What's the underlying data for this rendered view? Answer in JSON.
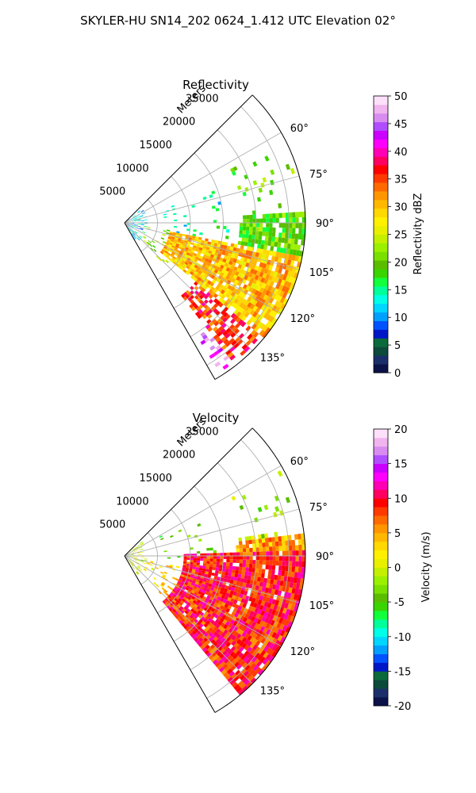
{
  "figure": {
    "title": "SKYLER-HU  SN14_202  0624_1.412 UTC Elevation 02°"
  },
  "chart_data": [
    {
      "type": "heatmap",
      "projection": "polar-sector",
      "title": "Reflectivity",
      "range_axis_label": "Meters",
      "range_ticks": [
        5000,
        10000,
        15000,
        20000,
        25000
      ],
      "range_tick_labels": [
        "5000",
        "10000",
        "15000",
        "20000",
        "25000"
      ],
      "rlim": [
        0,
        27500
      ],
      "azimuth_range_deg": [
        45,
        150
      ],
      "azimuth_ticks_deg": [
        60,
        75,
        90,
        105,
        120,
        135
      ],
      "azimuth_tick_labels": [
        "60°",
        "75°",
        "90°",
        "105°",
        "120°",
        "135°"
      ],
      "grid": true,
      "colorbar": {
        "label": "Reflectivity dBZ",
        "range": [
          0,
          50
        ],
        "ticks": [
          0,
          5,
          10,
          15,
          20,
          25,
          30,
          35,
          40,
          45,
          50
        ],
        "tick_labels": [
          "0",
          "5",
          "10",
          "15",
          "20",
          "25",
          "30",
          "35",
          "40",
          "45",
          "50"
        ],
        "colors": [
          "#0a1248",
          "#1a2f6a",
          "#0c4a3a",
          "#0b6a3c",
          "#0017c7",
          "#0053ff",
          "#00a0ff",
          "#00d6ff",
          "#00ffe6",
          "#00ff9a",
          "#12ff3c",
          "#3ad400",
          "#5bbd00",
          "#7ae000",
          "#9bf000",
          "#c4f000",
          "#e8f000",
          "#fff000",
          "#ffd800",
          "#ffb800",
          "#ff9600",
          "#ff6a00",
          "#ff3a00",
          "#ff0000",
          "#ff0060",
          "#ff00b4",
          "#ff00ff",
          "#cc00ff",
          "#b04dff",
          "#d88cf0",
          "#f0b4ee",
          "#fde0fa"
        ]
      },
      "regions": [
        {
          "az": [
            99,
            128
          ],
          "r": [
            7000,
            27500
          ],
          "value": 30,
          "density": 0.9
        },
        {
          "az": [
            103,
            120
          ],
          "r": [
            11000,
            22000
          ],
          "value": 38,
          "density": 0.8
        },
        {
          "az": [
            110,
            130
          ],
          "r": [
            13000,
            21000
          ],
          "value": 44,
          "density": 0.55
        },
        {
          "az": [
            104,
            116
          ],
          "r": [
            12000,
            15500
          ],
          "value": 48,
          "density": 0.3
        },
        {
          "az": [
            85,
            100
          ],
          "r": [
            17500,
            27500
          ],
          "value": 20,
          "density": 0.85
        },
        {
          "az": [
            95,
            104
          ],
          "r": [
            18000,
            27000
          ],
          "value": 27,
          "density": 0.7
        },
        {
          "az": [
            125,
            142
          ],
          "r": [
            14000,
            27000
          ],
          "value": 36,
          "density": 0.6
        },
        {
          "az": [
            132,
            146
          ],
          "r": [
            20000,
            27000
          ],
          "value": 45,
          "density": 0.35
        },
        {
          "az": [
            50,
            150
          ],
          "r": [
            0,
            3500
          ],
          "value": 12,
          "density": 0.28
        },
        {
          "az": [
            60,
            100
          ],
          "r": [
            6000,
            16000
          ],
          "value": 14,
          "density": 0.07
        },
        {
          "az": [
            100,
            135
          ],
          "r": [
            3000,
            9000
          ],
          "value": 22,
          "density": 0.15
        },
        {
          "az": [
            60,
            85
          ],
          "r": [
            18000,
            27000
          ],
          "value": 20,
          "density": 0.08
        }
      ]
    },
    {
      "type": "heatmap",
      "projection": "polar-sector",
      "title": "Velocity",
      "range_axis_label": "Meters",
      "range_ticks": [
        5000,
        10000,
        15000,
        20000,
        25000
      ],
      "range_tick_labels": [
        "5000",
        "10000",
        "15000",
        "20000",
        "25000"
      ],
      "rlim": [
        0,
        27500
      ],
      "azimuth_range_deg": [
        45,
        150
      ],
      "azimuth_ticks_deg": [
        60,
        75,
        90,
        105,
        120,
        135
      ],
      "azimuth_tick_labels": [
        "60°",
        "75°",
        "90°",
        "105°",
        "120°",
        "135°"
      ],
      "grid": true,
      "colorbar": {
        "label": "Velocity (m/s)",
        "range": [
          -20,
          20
        ],
        "ticks": [
          -20,
          -15,
          -10,
          -5,
          0,
          5,
          10,
          15,
          20
        ],
        "tick_labels": [
          "-20",
          "-15",
          "-10",
          "-5",
          "0",
          "5",
          "10",
          "15",
          "20"
        ],
        "colors": [
          "#0a1248",
          "#1a2f6a",
          "#0c4a3a",
          "#0b6a3c",
          "#0017c7",
          "#0053ff",
          "#00a0ff",
          "#00d6ff",
          "#00ffe6",
          "#00ff9a",
          "#12ff3c",
          "#3ad400",
          "#5bbd00",
          "#7ae000",
          "#9bf000",
          "#c4f000",
          "#e8f000",
          "#fff000",
          "#ffd800",
          "#ffb800",
          "#ff9600",
          "#ff6a00",
          "#ff3a00",
          "#ff0000",
          "#ff0060",
          "#ff00b4",
          "#ff00ff",
          "#cc00ff",
          "#b04dff",
          "#d88cf0",
          "#f0b4ee",
          "#fde0fa"
        ]
      },
      "regions": [
        {
          "az": [
            88,
            140
          ],
          "r": [
            9000,
            27500
          ],
          "value": 9,
          "density": 0.95
        },
        {
          "az": [
            104,
            135
          ],
          "r": [
            10000,
            22000
          ],
          "value": 12,
          "density": 0.75
        },
        {
          "az": [
            115,
            135
          ],
          "r": [
            15000,
            24000
          ],
          "value": 15,
          "density": 0.4
        },
        {
          "az": [
            82,
            100
          ],
          "r": [
            17500,
            27500
          ],
          "value": 5,
          "density": 0.85
        },
        {
          "az": [
            80,
            92
          ],
          "r": [
            17000,
            21000
          ],
          "value": 2,
          "density": 0.6
        },
        {
          "az": [
            100,
            112
          ],
          "r": [
            10000,
            15000
          ],
          "value": 1,
          "density": 0.6
        },
        {
          "az": [
            50,
            150
          ],
          "r": [
            0,
            3500
          ],
          "value": 0,
          "density": 0.28
        },
        {
          "az": [
            60,
            100
          ],
          "r": [
            6000,
            16000
          ],
          "value": -4,
          "density": 0.07
        },
        {
          "az": [
            100,
            135
          ],
          "r": [
            3000,
            9000
          ],
          "value": 3,
          "density": 0.15
        },
        {
          "az": [
            60,
            85
          ],
          "r": [
            18000,
            27000
          ],
          "value": -2,
          "density": 0.08
        }
      ]
    }
  ]
}
